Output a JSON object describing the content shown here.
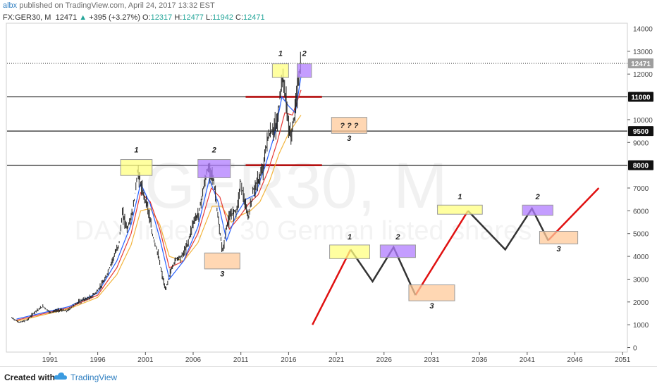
{
  "header": {
    "author": "albx",
    "published": "published on TradingView.com, April 24, 2017 13:32 EST",
    "symbol": "FX:GER30, M",
    "last": "12471",
    "change_arrow": "▲",
    "change": "+395 (+3.27%)",
    "o_label": "O:",
    "o_value": "12317",
    "h_label": "H:",
    "h_value": "12477",
    "l_label": "L:",
    "l_value": "11942",
    "c_label": "C:",
    "c_value": "12471"
  },
  "footer": {
    "created_label": "Created with",
    "brand": "TradingView",
    "logo_icon": "tradingview-cloud-icon"
  },
  "colors": {
    "bull": "#26a69a",
    "price_bar": "#222222",
    "ma_fast": "#2962ff",
    "ma_mid": "#e53935",
    "ma_slow": "#f2b43b",
    "box_yellow": "#ffff80",
    "box_purple": "#b07cff",
    "box_orange": "#ffc999",
    "red_line": "#e01010",
    "black_line": "#333333",
    "hline": "#222222",
    "red_level": "#b00000"
  },
  "watermark": {
    "symbol": "GER30, M",
    "description": "DAX Index of 30 German listed shares"
  },
  "chart_data": {
    "type": "line",
    "title": "",
    "xlabel": "",
    "ylabel": "",
    "x_range": [
      1986.5,
      2051.5
    ],
    "y_range": [
      -200,
      14200
    ],
    "x_ticks": [
      "1991",
      "1996",
      "2001",
      "2006",
      "2011",
      "2016",
      "2021",
      "2026",
      "2031",
      "2036",
      "2041",
      "2046",
      "2051"
    ],
    "y_ticks": [
      "0",
      "1000",
      "2000",
      "3000",
      "4000",
      "5000",
      "6000",
      "7000",
      "9000",
      "10000",
      "12000",
      "13000"
    ],
    "top_tick_partial": "14000",
    "last_price_label": "12471",
    "horizontal_levels": [
      {
        "value": 8000,
        "label": "8000"
      },
      {
        "value": 9500,
        "label": "9500"
      },
      {
        "value": 11000,
        "label": "11000"
      },
      {
        "value": 12471,
        "label": "12471",
        "style": "dotted"
      }
    ],
    "red_levels": [
      {
        "value": 8000,
        "from_year": 2011.5,
        "to_year": 2019.5
      },
      {
        "value": 11000,
        "from_year": 2011.5,
        "to_year": 2019.5
      }
    ],
    "price_history": {
      "x": [
        1987.0,
        1987.8,
        1988.6,
        1989.5,
        1990.3,
        1991.0,
        1992.0,
        1992.8,
        1993.6,
        1994.5,
        1995.3,
        1996.0,
        1996.8,
        1997.5,
        1998.2,
        1998.6,
        1999.1,
        1999.7,
        2000.2,
        2000.7,
        2001.2,
        2001.7,
        2002.2,
        2002.7,
        2003.1,
        2003.6,
        2004.2,
        2004.8,
        2005.4,
        2006.0,
        2006.6,
        2007.0,
        2007.5,
        2007.9,
        2008.3,
        2008.7,
        2009.1,
        2009.6,
        2010.1,
        2010.6,
        2011.0,
        2011.5,
        2011.8,
        2012.3,
        2012.8,
        2013.3,
        2013.8,
        2014.3,
        2014.8,
        2015.3,
        2015.6,
        2015.9,
        2016.2,
        2016.6,
        2016.9,
        2017.3
      ],
      "y": [
        1300,
        1100,
        1200,
        1600,
        1800,
        1550,
        1650,
        1600,
        1900,
        2100,
        2200,
        2500,
        3000,
        3800,
        4500,
        5900,
        5200,
        6000,
        7800,
        6800,
        6300,
        5000,
        4300,
        3300,
        2500,
        3300,
        3900,
        4000,
        4500,
        5500,
        5900,
        6800,
        7800,
        7800,
        6900,
        5300,
        4200,
        5500,
        5900,
        6100,
        7300,
        6100,
        5700,
        6900,
        7300,
        7800,
        9200,
        9500,
        9800,
        11800,
        11400,
        10100,
        9200,
        10100,
        11300,
        12471
      ]
    },
    "ma_fast": {
      "name": "",
      "x": [
        1987.5,
        1990,
        1993,
        1996,
        1998,
        1999.5,
        2000.5,
        2001.5,
        2002.5,
        2003.5,
        2005,
        2006.5,
        2007.7,
        2008.6,
        2009.5,
        2010.5,
        2011.5,
        2012.5,
        2013.5,
        2014.5,
        2015.3,
        2016.0,
        2016.7,
        2017.3
      ],
      "y": [
        1250,
        1500,
        1800,
        2400,
        3800,
        5400,
        7200,
        6300,
        4800,
        3000,
        3800,
        5300,
        7400,
        6400,
        4700,
        5800,
        6500,
        6700,
        7900,
        9300,
        11000,
        10600,
        10300,
        11900
      ]
    },
    "ma_mid": {
      "name": "",
      "x": [
        1987.5,
        1990,
        1993,
        1996,
        1998,
        1999.5,
        2000.5,
        2001.5,
        2002.5,
        2003.5,
        2005,
        2006.5,
        2007.9,
        2008.8,
        2009.8,
        2010.8,
        2011.8,
        2012.8,
        2013.8,
        2014.8,
        2015.6,
        2016.4,
        2017.3
      ],
      "y": [
        1200,
        1450,
        1750,
        2300,
        3500,
        5000,
        6800,
        6400,
        5200,
        3500,
        3800,
        5000,
        7000,
        6600,
        5200,
        5700,
        6300,
        6700,
        7700,
        9000,
        10300,
        10200,
        11300
      ]
    },
    "ma_slow": {
      "name": "",
      "x": [
        1987.5,
        1990,
        1993,
        1996,
        1998,
        1999.5,
        2000.5,
        2001.5,
        2002.5,
        2003.5,
        2005,
        2006.5,
        2008.0,
        2009.0,
        2010.0,
        2011.0,
        2012.0,
        2013.0,
        2014.0,
        2015.0,
        2016.0,
        2017.3
      ],
      "y": [
        1150,
        1400,
        1700,
        2200,
        3200,
        4500,
        6000,
        6100,
        5400,
        4000,
        3800,
        4600,
        6200,
        6200,
        5500,
        5800,
        6000,
        6400,
        7300,
        8500,
        9400,
        10200
      ]
    },
    "projection_red": [
      {
        "x": [
          2018.5,
          2022.5
        ],
        "y": [
          1000,
          4300
        ]
      },
      {
        "x": [
          2029.3,
          2034.8
        ],
        "y": [
          2300,
          6000
        ]
      },
      {
        "x": [
          2043.2,
          2048.5
        ],
        "y": [
          4700,
          7000
        ]
      }
    ],
    "projection_black": [
      {
        "x": [
          2022.5,
          2024.8,
          2027.0,
          2029.3
        ],
        "y": [
          4300,
          2900,
          4400,
          2300
        ]
      },
      {
        "x": [
          2034.8,
          2038.7,
          2041.5,
          2043.2
        ],
        "y": [
          6000,
          4300,
          6100,
          4700
        ]
      }
    ],
    "boxes": [
      {
        "label": "1",
        "color": "yellow",
        "x0": 1998.4,
        "x1": 2001.7,
        "y0": 7550,
        "y1": 8250,
        "label_y": 8560
      },
      {
        "label": "2",
        "color": "purple",
        "x0": 2006.5,
        "x1": 2009.9,
        "y0": 7450,
        "y1": 8250,
        "label_y": 8560
      },
      {
        "label": "3",
        "color": "orange",
        "x0": 2007.2,
        "x1": 2010.9,
        "y0": 3450,
        "y1": 4150,
        "label_y": 3300,
        "label_below": true
      },
      {
        "label": "1",
        "color": "yellow",
        "x0": 2014.3,
        "x1": 2016.0,
        "y0": 11850,
        "y1": 12450,
        "label_y": 12800
      },
      {
        "label": "2",
        "color": "purple",
        "x0": 2016.9,
        "x1": 2018.4,
        "y0": 11850,
        "y1": 12450,
        "label_y": 12800
      },
      {
        "label": "? ? ?",
        "color": "orange",
        "x0": 2020.5,
        "x1": 2024.2,
        "y0": 9400,
        "y1": 10100,
        "text_inside": true
      },
      {
        "label": "3",
        "color": "orange",
        "x0": 2020.5,
        "x1": 2024.2,
        "y0": 9400,
        "y1": 10100,
        "label_y": 9250,
        "label_below": true,
        "label_only": true
      },
      {
        "label": "1",
        "color": "yellow",
        "x0": 2020.3,
        "x1": 2024.5,
        "y0": 3900,
        "y1": 4500,
        "label_y": 4750
      },
      {
        "label": "2",
        "color": "purple",
        "x0": 2025.6,
        "x1": 2029.3,
        "y0": 3950,
        "y1": 4500,
        "label_y": 4750
      },
      {
        "label": "3",
        "color": "orange",
        "x0": 2028.6,
        "x1": 2033.4,
        "y0": 2050,
        "y1": 2750,
        "label_y": 1900,
        "label_below": true
      },
      {
        "label": "1",
        "color": "yellow",
        "x0": 2031.6,
        "x1": 2036.3,
        "y0": 5850,
        "y1": 6250,
        "label_y": 6500
      },
      {
        "label": "2",
        "color": "purple",
        "x0": 2040.5,
        "x1": 2043.7,
        "y0": 5800,
        "y1": 6250,
        "label_y": 6500
      },
      {
        "label": "3",
        "color": "orange",
        "x0": 2042.3,
        "x1": 2046.3,
        "y0": 4550,
        "y1": 5100,
        "label_y": 4400,
        "label_below": true
      }
    ]
  }
}
